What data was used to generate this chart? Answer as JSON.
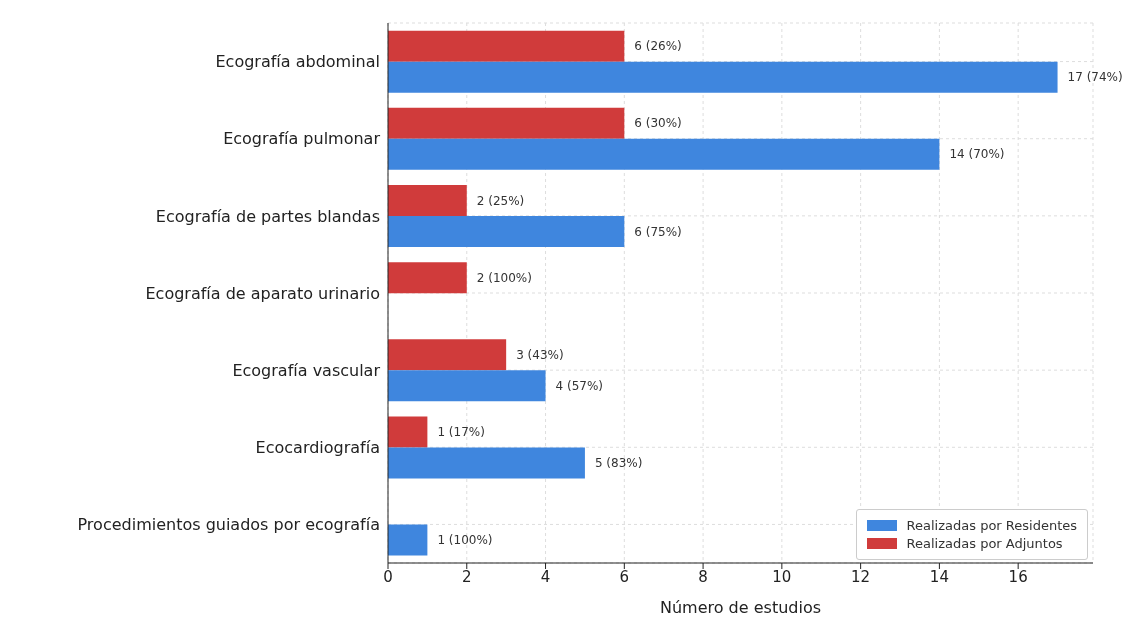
{
  "chart_data": {
    "type": "bar",
    "orientation": "horizontal",
    "xlabel": "Número de estudios",
    "categories": [
      "Ecografía abdominal",
      "Ecografía pulmonar",
      "Ecografía de partes blandas",
      "Ecografía de aparato urinario",
      "Ecografía vascular",
      "Ecocardiografía",
      "Procedimientos guiados por ecografía"
    ],
    "series": [
      {
        "name": "Realizadas por Residentes",
        "color": "#3f86de",
        "values": [
          17,
          14,
          6,
          null,
          4,
          5,
          1
        ],
        "value_labels": [
          "17 (74%)",
          "14 (70%)",
          "6 (75%)",
          null,
          "4 (57%)",
          "5 (83%)",
          "1 (100%)"
        ]
      },
      {
        "name": "Realizadas por Adjuntos",
        "color": "#d03b3b",
        "values": [
          6,
          6,
          2,
          2,
          3,
          1,
          null
        ],
        "value_labels": [
          "6 (26%)",
          "6 (30%)",
          "2 (25%)",
          "2 (100%)",
          "3 (43%)",
          "1 (17%)",
          null
        ]
      }
    ],
    "xlim": [
      0,
      17.9
    ],
    "xticks": [
      0,
      2,
      4,
      6,
      8,
      10,
      12,
      14,
      16
    ],
    "grid": true,
    "legend": "bottom right"
  }
}
